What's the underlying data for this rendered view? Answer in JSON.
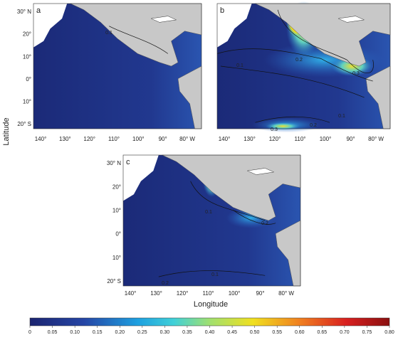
{
  "panels": [
    {
      "label": "a",
      "lat_labels": [
        "30° N",
        "20°",
        "10°",
        "0°",
        "10°",
        "20° S"
      ],
      "lon_labels": [
        "140°",
        "130°",
        "120°",
        "110°",
        "100°",
        "90°",
        "80° W"
      ],
      "contour_labels": [
        "0.1"
      ]
    },
    {
      "label": "b",
      "lat_labels": [],
      "lon_labels": [
        "140°",
        "130°",
        "120°",
        "110°",
        "100°",
        "90°",
        "80° W"
      ],
      "contour_labels": [
        "0.1",
        "0.2",
        "0.3",
        "0.1",
        "0.3",
        "0.2"
      ]
    },
    {
      "label": "c",
      "lat_labels": [
        "30° N",
        "20°",
        "10°",
        "0°",
        "10°",
        "20° S"
      ],
      "lon_labels": [
        "140°",
        "130°",
        "120°",
        "110°",
        "100°",
        "90°",
        "80° W"
      ],
      "contour_labels": [
        "0.1",
        "0.2",
        "0.1",
        "0.2"
      ]
    }
  ],
  "y_axis_title": "Latitude",
  "x_axis_title": "Longitude",
  "colorbar": {
    "tick_labels": [
      "0",
      "0.05",
      "0.10",
      "0.15",
      "0.20",
      "0.25",
      "0.30",
      "0.35",
      "0.40",
      "0.45",
      "0.50",
      "0.55",
      "0.60",
      "0.65",
      "0.70",
      "0.75",
      "0.80"
    ]
  }
}
